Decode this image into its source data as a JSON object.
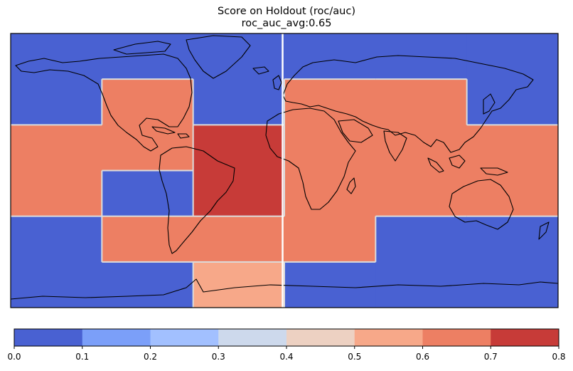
{
  "title": {
    "line1": "Score on Holdout (roc/auc)",
    "line2": "roc_auc_avg:0.65"
  },
  "map": {
    "projection": "PlateCarree",
    "lon_range": [
      -180,
      180
    ],
    "lat_range": [
      -90,
      90
    ],
    "coastlines": true,
    "block_border_color": "#dcdcdc",
    "divider_color": "#ffffff"
  },
  "chart_data": {
    "type": "heatmap",
    "title": "Score on Holdout (roc/auc)",
    "subtitle": "roc_auc_avg:0.65",
    "metric": "roc_auc",
    "average": 0.65,
    "regions": [
      {
        "lon": [
          -180,
          -120
        ],
        "lat": [
          30,
          90
        ],
        "value": 0.05
      },
      {
        "lon": [
          -120,
          -60
        ],
        "lat": [
          60,
          90
        ],
        "value": 0.05
      },
      {
        "lon": [
          -120,
          -60
        ],
        "lat": [
          30,
          60
        ],
        "value": 0.65
      },
      {
        "lon": [
          -60,
          0
        ],
        "lat": [
          30,
          90
        ],
        "value": 0.05
      },
      {
        "lon": [
          0,
          120
        ],
        "lat": [
          60,
          90
        ],
        "value": 0.05
      },
      {
        "lon": [
          0,
          120
        ],
        "lat": [
          30,
          60
        ],
        "value": 0.65
      },
      {
        "lon": [
          120,
          180
        ],
        "lat": [
          30,
          90
        ],
        "value": 0.05
      },
      {
        "lon": [
          -180,
          -120
        ],
        "lat": [
          -30,
          30
        ],
        "value": 0.65
      },
      {
        "lon": [
          -120,
          -60
        ],
        "lat": [
          0,
          30
        ],
        "value": 0.65
      },
      {
        "lon": [
          -120,
          -60
        ],
        "lat": [
          -30,
          0
        ],
        "value": 0.05
      },
      {
        "lon": [
          -60,
          0
        ],
        "lat": [
          -30,
          30
        ],
        "value": 0.75
      },
      {
        "lon": [
          0,
          180
        ],
        "lat": [
          -30,
          30
        ],
        "value": 0.65
      },
      {
        "lon": [
          -180,
          -120
        ],
        "lat": [
          -90,
          -30
        ],
        "value": 0.05
      },
      {
        "lon": [
          -120,
          -60
        ],
        "lat": [
          -60,
          -30
        ],
        "value": 0.65
      },
      {
        "lon": [
          -120,
          -60
        ],
        "lat": [
          -90,
          -60
        ],
        "value": 0.05
      },
      {
        "lon": [
          -60,
          0
        ],
        "lat": [
          -60,
          -30
        ],
        "value": 0.65
      },
      {
        "lon": [
          -60,
          0
        ],
        "lat": [
          -90,
          -60
        ],
        "value": 0.55
      },
      {
        "lon": [
          0,
          60
        ],
        "lat": [
          -60,
          -30
        ],
        "value": 0.65
      },
      {
        "lon": [
          0,
          60
        ],
        "lat": [
          -90,
          -60
        ],
        "value": 0.05
      },
      {
        "lon": [
          60,
          180
        ],
        "lat": [
          -90,
          -30
        ],
        "value": 0.05
      }
    ],
    "colorbar": {
      "colormap": "coolwarm",
      "range": [
        0.0,
        0.8
      ],
      "levels": [
        0.0,
        0.1,
        0.2,
        0.3,
        0.4,
        0.5,
        0.6,
        0.7,
        0.8
      ],
      "tick_labels": [
        "0.0",
        "0.1",
        "0.2",
        "0.3",
        "0.4",
        "0.5",
        "0.6",
        "0.7",
        "0.8"
      ],
      "colors": [
        "#4961d2",
        "#7b9ff9",
        "#a2c0ff",
        "#cdd9ec",
        "#edd1c2",
        "#f7a889",
        "#ed7f63",
        "#c73b38"
      ],
      "placement": "bottom"
    }
  }
}
